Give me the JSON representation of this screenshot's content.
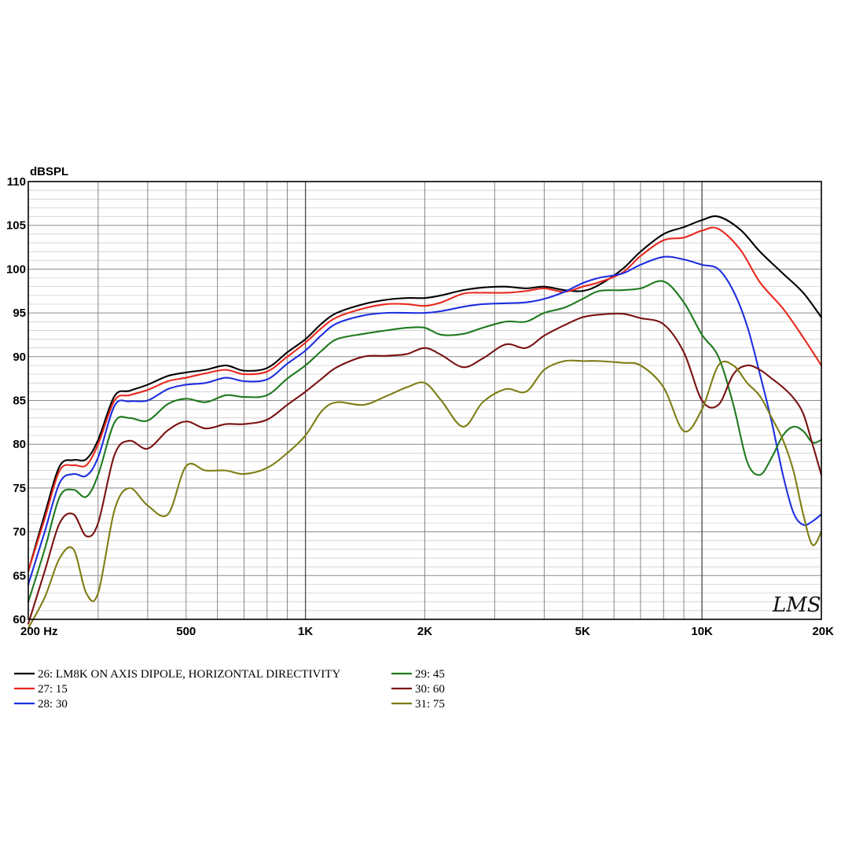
{
  "chart_data": {
    "type": "line",
    "ylabel": "dBSPL",
    "xscale": "log",
    "xlim": [
      200,
      20000
    ],
    "ylim": [
      60,
      110
    ],
    "y_ticks": [
      60,
      65,
      70,
      75,
      80,
      85,
      90,
      95,
      100,
      105,
      110
    ],
    "x_tick_labels": [
      {
        "value": 200,
        "label": "200  Hz"
      },
      {
        "value": 500,
        "label": "500"
      },
      {
        "value": 1000,
        "label": "1K"
      },
      {
        "value": 2000,
        "label": "2K"
      },
      {
        "value": 5000,
        "label": "5K"
      },
      {
        "value": 10000,
        "label": "10K"
      },
      {
        "value": 20000,
        "label": "20K"
      }
    ],
    "grid": true,
    "legend_position": "bottom",
    "brand": "LMS",
    "series": [
      {
        "name": "26: LM8K ON AXIS DIPOLE, HORIZONTAL DIRECTIVITY",
        "color": "#000000",
        "x": [
          200,
          220,
          240,
          260,
          280,
          300,
          330,
          360,
          400,
          450,
          500,
          560,
          630,
          700,
          800,
          900,
          1000,
          1100,
          1200,
          1400,
          1600,
          1800,
          2000,
          2200,
          2500,
          2800,
          3200,
          3600,
          4000,
          4500,
          5000,
          5500,
          6300,
          7000,
          8000,
          9000,
          10000,
          11000,
          12500,
          14000,
          16000,
          18000,
          20000
        ],
        "y": [
          65.5,
          72,
          77.5,
          78.2,
          78.3,
          80.5,
          85.5,
          86.1,
          86.8,
          87.8,
          88.2,
          88.5,
          89,
          88.4,
          88.7,
          90.5,
          92,
          93.8,
          95,
          96,
          96.5,
          96.7,
          96.7,
          97,
          97.6,
          97.9,
          98,
          97.8,
          98,
          97.6,
          97.5,
          98.2,
          100,
          102,
          104,
          104.8,
          105.6,
          106,
          104.5,
          102,
          99.5,
          97.3,
          94.5
        ]
      },
      {
        "name": "27: 15",
        "color": "#e8281e",
        "x": [
          200,
          220,
          240,
          260,
          280,
          300,
          330,
          360,
          400,
          450,
          500,
          560,
          630,
          700,
          800,
          900,
          1000,
          1100,
          1200,
          1400,
          1600,
          1800,
          2000,
          2200,
          2500,
          2800,
          3200,
          3600,
          4000,
          4500,
          5000,
          5500,
          6300,
          7000,
          8000,
          9000,
          10000,
          11000,
          12500,
          14000,
          16000,
          18000,
          20000
        ],
        "y": [
          65.5,
          71.5,
          77,
          77.6,
          77.6,
          80,
          85,
          85.6,
          86.2,
          87.2,
          87.6,
          88.1,
          88.5,
          88,
          88.3,
          90,
          91.6,
          93.3,
          94.5,
          95.5,
          96,
          96,
          95.8,
          96.2,
          97.2,
          97.3,
          97.3,
          97.5,
          97.8,
          97.4,
          98,
          98.5,
          99.6,
          101.5,
          103.3,
          103.6,
          104.4,
          104.6,
          102.2,
          98.5,
          95.5,
          92.2,
          89
        ]
      },
      {
        "name": "28: 30",
        "color": "#1f2fe0",
        "x": [
          200,
          220,
          240,
          260,
          280,
          300,
          330,
          360,
          400,
          450,
          500,
          560,
          630,
          700,
          800,
          900,
          1000,
          1100,
          1200,
          1400,
          1600,
          1800,
          2000,
          2200,
          2500,
          2800,
          3200,
          3600,
          4000,
          4500,
          5000,
          5500,
          6300,
          7000,
          8000,
          9000,
          10000,
          11000,
          12000,
          13000,
          14000,
          15000,
          16000,
          17000,
          18000,
          19000,
          20000
        ],
        "y": [
          64,
          70,
          75.6,
          76.6,
          76.4,
          78.5,
          84.4,
          84.9,
          85,
          86.3,
          86.8,
          87,
          87.6,
          87.2,
          87.4,
          89.2,
          90.7,
          92.5,
          93.8,
          94.7,
          95,
          95,
          95,
          95.2,
          95.7,
          96,
          96.1,
          96.2,
          96.6,
          97.4,
          98.4,
          99,
          99.5,
          100.5,
          101.4,
          101.1,
          100.5,
          100,
          97.5,
          93.5,
          88,
          82.5,
          76.5,
          72.2,
          70.8,
          71.2,
          72
        ]
      },
      {
        "name": "29: 45",
        "color": "#1e7a1e",
        "x": [
          200,
          220,
          240,
          260,
          280,
          300,
          330,
          360,
          400,
          450,
          500,
          560,
          630,
          700,
          800,
          900,
          1000,
          1100,
          1200,
          1400,
          1600,
          1800,
          2000,
          2200,
          2500,
          2800,
          3200,
          3600,
          4000,
          4500,
          5000,
          5500,
          6300,
          7000,
          8000,
          9000,
          10000,
          11000,
          12000,
          13000,
          14000,
          15000,
          16000,
          17000,
          18000,
          19000,
          20000
        ],
        "y": [
          62,
          68,
          74,
          74.8,
          74,
          76.5,
          82.5,
          83,
          82.7,
          84.6,
          85.2,
          84.8,
          85.6,
          85.4,
          85.6,
          87.5,
          89,
          90.7,
          92,
          92.6,
          93,
          93.3,
          93.3,
          92.5,
          92.6,
          93.3,
          94,
          94,
          95,
          95.6,
          96.6,
          97.5,
          97.6,
          97.8,
          98.6,
          96.2,
          92.5,
          90,
          84.5,
          78,
          76.5,
          78.5,
          81,
          82,
          81.5,
          80.2,
          80.5
        ]
      },
      {
        "name": "30: 60",
        "color": "#7a1212",
        "x": [
          200,
          220,
          240,
          260,
          280,
          300,
          330,
          360,
          400,
          450,
          500,
          560,
          630,
          700,
          800,
          900,
          1000,
          1100,
          1200,
          1400,
          1600,
          1800,
          2000,
          2200,
          2500,
          2800,
          3200,
          3600,
          4000,
          4500,
          5000,
          5500,
          6300,
          7000,
          8000,
          9000,
          10000,
          11000,
          12000,
          13000,
          14000,
          15000,
          16000,
          17000,
          18000,
          19000,
          20000
        ],
        "y": [
          59.5,
          65.5,
          71,
          72,
          69.5,
          71,
          78.8,
          80.4,
          79.5,
          81.6,
          82.6,
          81.8,
          82.3,
          82.3,
          82.8,
          84.5,
          86,
          87.5,
          88.8,
          90,
          90.1,
          90.3,
          91,
          90.2,
          88.8,
          89.8,
          91.4,
          91,
          92.4,
          93.6,
          94.5,
          94.8,
          94.9,
          94.4,
          93.7,
          90.5,
          85,
          84.5,
          88,
          89,
          88.5,
          87.5,
          86.5,
          85.3,
          83.5,
          80,
          76.5
        ]
      },
      {
        "name": "31: 75",
        "color": "#7d7d14",
        "x": [
          200,
          220,
          240,
          260,
          280,
          300,
          330,
          360,
          400,
          450,
          500,
          560,
          630,
          700,
          800,
          900,
          1000,
          1100,
          1200,
          1400,
          1600,
          1800,
          2000,
          2200,
          2500,
          2800,
          3200,
          3600,
          4000,
          4500,
          5000,
          5500,
          6300,
          7000,
          8000,
          9000,
          10000,
          11000,
          12000,
          13000,
          14000,
          15000,
          16000,
          17000,
          18000,
          19000,
          20000
        ],
        "y": [
          59,
          62.5,
          67,
          68,
          63,
          63,
          72.5,
          75,
          73,
          72,
          77.5,
          77,
          77,
          76.6,
          77.3,
          79,
          81,
          83.8,
          84.8,
          84.5,
          85.5,
          86.5,
          87,
          85,
          82,
          84.8,
          86.3,
          86,
          88.5,
          89.5,
          89.5,
          89.5,
          89.3,
          89,
          86.5,
          81.5,
          84,
          89,
          89,
          87,
          85.5,
          83,
          80.5,
          77,
          72,
          68.5,
          70
        ]
      }
    ]
  }
}
